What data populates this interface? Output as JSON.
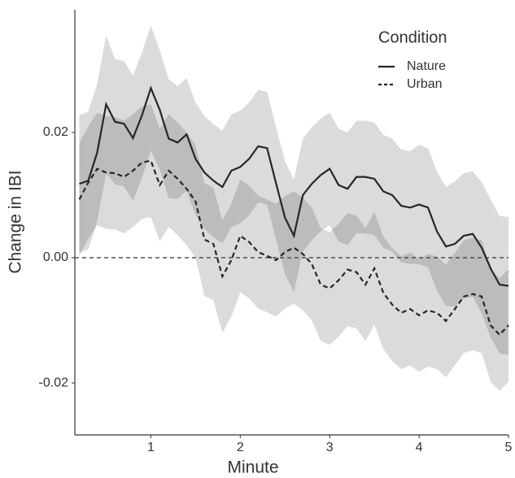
{
  "chart_data": {
    "type": "line",
    "x_label": "Minute",
    "y_label": "Change in IBI",
    "legend_title": "Condition",
    "legend_position": "top-right",
    "x": [
      0.2,
      0.3,
      0.4,
      0.5,
      0.6,
      0.7,
      0.8,
      0.9,
      1.0,
      1.1,
      1.2,
      1.3,
      1.4,
      1.5,
      1.6,
      1.7,
      1.8,
      1.9,
      2.0,
      2.1,
      2.2,
      2.3,
      2.4,
      2.5,
      2.6,
      2.7,
      2.8,
      2.9,
      3.0,
      3.1,
      3.2,
      3.3,
      3.4,
      3.5,
      3.6,
      3.7,
      3.8,
      3.9,
      4.0,
      4.1,
      4.2,
      4.3,
      4.4,
      4.5,
      4.6,
      4.7,
      4.8,
      4.9,
      5.0
    ],
    "series": [
      {
        "name": "Nature",
        "color": "#262626",
        "dash": "solid",
        "band_color": "#000000",
        "values": [
          0.0118,
          0.0123,
          0.0168,
          0.0245,
          0.0217,
          0.0214,
          0.0191,
          0.0227,
          0.0271,
          0.0236,
          0.019,
          0.0184,
          0.0197,
          0.0158,
          0.0136,
          0.0123,
          0.0113,
          0.0139,
          0.0145,
          0.0158,
          0.0178,
          0.0175,
          0.0119,
          0.0064,
          0.0035,
          0.01,
          0.0118,
          0.0132,
          0.0142,
          0.0116,
          0.011,
          0.0129,
          0.0129,
          0.0126,
          0.0106,
          0.01,
          0.0083,
          0.008,
          0.0085,
          0.008,
          0.0042,
          0.0018,
          0.0022,
          0.0035,
          0.0038,
          0.0016,
          -0.0017,
          -0.0043,
          -0.0045
        ],
        "errors": [
          0.011,
          0.011,
          0.011,
          0.011,
          0.01,
          0.01,
          0.01,
          0.01,
          0.01,
          0.0095,
          0.0095,
          0.009,
          0.009,
          0.009,
          0.009,
          0.009,
          0.009,
          0.009,
          0.009,
          0.009,
          0.009,
          0.009,
          0.009,
          0.009,
          0.009,
          0.009,
          0.009,
          0.009,
          0.009,
          0.009,
          0.009,
          0.009,
          0.009,
          0.009,
          0.009,
          0.009,
          0.009,
          0.009,
          0.0095,
          0.0095,
          0.0095,
          0.0095,
          0.01,
          0.01,
          0.01,
          0.0105,
          0.011,
          0.011,
          0.011
        ]
      },
      {
        "name": "Urban",
        "color": "#262626",
        "dash": "dashed",
        "band_color": "#000000",
        "values": [
          0.0093,
          0.012,
          0.0142,
          0.0136,
          0.0135,
          0.0129,
          0.0139,
          0.0152,
          0.0155,
          0.0116,
          0.0139,
          0.0126,
          0.011,
          0.009,
          0.0029,
          0.0022,
          -0.003,
          -0.0004,
          0.0035,
          0.0025,
          0.0009,
          0.0003,
          -0.0004,
          0.0009,
          0.0016,
          0.0006,
          -0.001,
          -0.0043,
          -0.0049,
          -0.0036,
          -0.0019,
          -0.0023,
          -0.0043,
          -0.0017,
          -0.0056,
          -0.0075,
          -0.0088,
          -0.0082,
          -0.0092,
          -0.0084,
          -0.0088,
          -0.0101,
          -0.0082,
          -0.0062,
          -0.0058,
          -0.0062,
          -0.0108,
          -0.0123,
          -0.0108
        ],
        "errors": [
          0.009,
          0.009,
          0.009,
          0.009,
          0.009,
          0.009,
          0.009,
          0.009,
          0.009,
          0.009,
          0.009,
          0.009,
          0.009,
          0.009,
          0.009,
          0.009,
          0.009,
          0.009,
          0.009,
          0.009,
          0.009,
          0.009,
          0.009,
          0.009,
          0.009,
          0.009,
          0.009,
          0.009,
          0.009,
          0.009,
          0.009,
          0.009,
          0.009,
          0.009,
          0.009,
          0.009,
          0.009,
          0.009,
          0.009,
          0.009,
          0.009,
          0.009,
          0.009,
          0.009,
          0.009,
          0.009,
          0.009,
          0.009,
          0.009
        ]
      }
    ],
    "hline": 0,
    "xlim": [
      0.15,
      5
    ],
    "ylim": [
      -0.0283,
      0.0396
    ],
    "xticks": [
      1,
      2,
      3,
      4,
      5
    ],
    "yticks": [
      -0.02,
      {
        "value": 0,
        "label": "0.00"
      },
      0.02
    ]
  }
}
